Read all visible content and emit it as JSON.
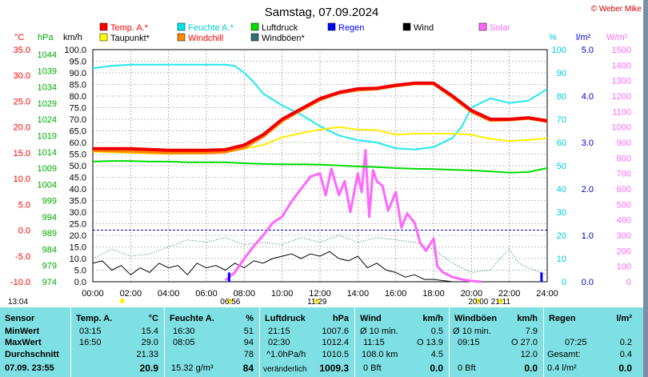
{
  "title": "Samstag, 07.09.2024",
  "copyright": "© Weber Mike",
  "legend": [
    {
      "label": "Temp. A.*",
      "color": "#ff0000"
    },
    {
      "label": "Feuchte A.*",
      "color": "#00e5ee"
    },
    {
      "label": "Luftdruck",
      "color": "#00dd00"
    },
    {
      "label": "Regen",
      "color": "#0000ff"
    },
    {
      "label": "Wind",
      "color": "#000000"
    },
    {
      "label": "Solar",
      "color": "#ff66ff"
    },
    {
      "label": "Taupunkt*",
      "color": "#ffff00"
    },
    {
      "label": "Windchill",
      "color": "#ff8800"
    },
    {
      "label": "Windböen*",
      "color": "#2f6f6f"
    }
  ],
  "axis_units": {
    "temp": "°C",
    "hpa": "hPa",
    "kmh": "km/h",
    "pct": "%",
    "rain": "l/m²",
    "solar": "W/m²"
  },
  "axis_ticks": {
    "temp": [
      "35.0",
      "30.0",
      "25.0",
      "20.0",
      "15.0",
      "10.0",
      "5.0",
      "0.0",
      "-5.0",
      "-10.0"
    ],
    "hpa": [
      "1044",
      "1039",
      "1034",
      "1029",
      "1024",
      "1019",
      "1014",
      "1009",
      "1004",
      "999",
      "994",
      "989",
      "984",
      "979",
      "974"
    ],
    "kmh": [
      "100.0",
      "95.0",
      "90.0",
      "85.0",
      "80.0",
      "75.0",
      "70.0",
      "65.0",
      "60.0",
      "55.0",
      "50.0",
      "45.0",
      "40.0",
      "35.0",
      "30.0",
      "25.0",
      "20.0",
      "15.0",
      "10.0",
      "5.0",
      "0.0"
    ],
    "pct": [
      "100",
      "90",
      "80",
      "70",
      "60",
      "50",
      "40",
      "30",
      "20",
      "10",
      "0"
    ],
    "rain": [
      "5.0",
      "4.0",
      "3.0",
      "2.0",
      "1.0",
      "0.0"
    ],
    "solar": [
      "1500",
      "1400",
      "1300",
      "1200",
      "1100",
      "1000",
      "900",
      "800",
      "700",
      "600",
      "500",
      "400",
      "300",
      "200",
      "100",
      "0"
    ],
    "x": [
      "00:00",
      "02:00",
      "04:00",
      "06:00",
      "08:00",
      "10:00",
      "12:00",
      "14:00",
      "16:00",
      "18:00",
      "20:00",
      "22:00",
      "24:00"
    ]
  },
  "events": [
    {
      "label": "13:04",
      "hour": 0.2
    },
    {
      "label": "06:56",
      "hour": 6.9
    },
    {
      "label": "11:29",
      "hour": 11.5
    },
    {
      "label": "20:00",
      "hour": 20.0
    },
    {
      "label": "21:11",
      "hour": 21.2
    }
  ],
  "chart_data": {
    "type": "line",
    "x_unit": "hour",
    "x_range": [
      0,
      24
    ],
    "series": [
      {
        "name": "Temp. A.*",
        "axis": "temp",
        "x": [
          0,
          2,
          4,
          6,
          7,
          8,
          9,
          10,
          11,
          12,
          13,
          14,
          15,
          16,
          17,
          18,
          19,
          20,
          21,
          22,
          23,
          24
        ],
        "values": [
          15.8,
          15.8,
          15.5,
          15.5,
          15.6,
          16.5,
          18.5,
          21.5,
          23.5,
          25.5,
          26.7,
          27.4,
          27.5,
          28.1,
          28.5,
          28.5,
          26,
          23.2,
          21.5,
          21.5,
          21.8,
          21.2
        ]
      },
      {
        "name": "Taupunkt*",
        "axis": "temp",
        "x": [
          0,
          2,
          4,
          6,
          7,
          8,
          9,
          10,
          11,
          12,
          13,
          14,
          15,
          16,
          17,
          18,
          19,
          20,
          21,
          22,
          23,
          24
        ],
        "values": [
          15.2,
          15.0,
          14.8,
          15.0,
          15.3,
          15.8,
          16.5,
          18,
          18.8,
          19.5,
          20,
          19.5,
          19.4,
          18.5,
          18.7,
          18.7,
          18.7,
          18.5,
          17.7,
          17.3,
          17.5,
          17.8
        ]
      },
      {
        "name": "Windchill",
        "axis": "temp",
        "x": [
          0,
          2,
          4,
          6,
          7,
          8,
          9,
          10,
          11,
          12,
          13,
          14,
          15,
          16,
          17,
          18,
          19,
          20,
          21,
          22,
          23,
          24
        ],
        "values": [
          15.5,
          15.3,
          15.0,
          15.0,
          15.2,
          16.0,
          18.2,
          21.2,
          23.3,
          25.3,
          26.6,
          27.2,
          27.4,
          28.0,
          28.4,
          28.4,
          25.8,
          23.0,
          21.3,
          21.4,
          21.7,
          21.1
        ]
      },
      {
        "name": "Feuchte A.*",
        "axis": "pct",
        "x": [
          0,
          1,
          2,
          4,
          6,
          7,
          7.5,
          8,
          8.5,
          9,
          10,
          11,
          12,
          13,
          14,
          15,
          16,
          17,
          18,
          19,
          19.5,
          20,
          21,
          22,
          23,
          24
        ],
        "values": [
          92,
          93,
          93.5,
          93.5,
          93.5,
          93.5,
          93,
          90,
          86,
          81,
          76,
          72,
          67,
          63,
          61,
          60,
          57.5,
          57,
          58,
          62,
          67,
          75,
          79,
          77,
          78,
          83
        ]
      },
      {
        "name": "Luftdruck",
        "axis": "hpa",
        "x": [
          0,
          1,
          2,
          3,
          4,
          5,
          6,
          7,
          8,
          9,
          10,
          11,
          12,
          13,
          14,
          15,
          16,
          17,
          18,
          19,
          20,
          21,
          22,
          23,
          24
        ],
        "values": [
          1011.0,
          1011.2,
          1011.2,
          1011.0,
          1011.0,
          1010.8,
          1010.8,
          1010.8,
          1010.5,
          1010.3,
          1010.2,
          1010.2,
          1010.1,
          1009.8,
          1009.5,
          1009.3,
          1009.0,
          1008.8,
          1008.7,
          1008.5,
          1008.3,
          1008.0,
          1007.6,
          1007.8,
          1009.0
        ]
      },
      {
        "name": "Solar",
        "axis": "solar",
        "x": [
          7,
          7.5,
          8,
          8.5,
          9,
          9.5,
          10,
          10.5,
          11,
          11.5,
          12,
          12.3,
          12.6,
          13,
          13.3,
          13.6,
          14,
          14.2,
          14.4,
          14.6,
          14.8,
          15,
          15.3,
          15.6,
          16,
          16.3,
          16.6,
          17,
          17.3,
          17.6,
          18,
          18.2,
          18.5,
          19,
          19.5,
          20,
          20.5
        ],
        "values": [
          10,
          60,
          150,
          230,
          300,
          380,
          420,
          520,
          600,
          680,
          700,
          560,
          730,
          560,
          650,
          450,
          700,
          580,
          850,
          420,
          720,
          650,
          620,
          460,
          580,
          350,
          440,
          380,
          250,
          200,
          280,
          100,
          60,
          30,
          15,
          5,
          0
        ]
      },
      {
        "name": "Wind",
        "axis": "kmh",
        "x": [
          0,
          0.5,
          1,
          1.5,
          2,
          2.5,
          3,
          3.5,
          4,
          4.5,
          5,
          5.5,
          6,
          6.5,
          7,
          7.5,
          8,
          8.5,
          9,
          9.5,
          10,
          10.5,
          11,
          11.5,
          12,
          12.5,
          13,
          13.5,
          14,
          14.5,
          15,
          15.5,
          16,
          16.5,
          17,
          17.5,
          18,
          19,
          20,
          21,
          22,
          23,
          24
        ],
        "values": [
          8,
          9,
          5,
          7,
          3,
          6,
          4,
          8,
          6,
          7,
          3,
          8,
          6,
          7,
          5,
          8,
          6,
          9,
          8,
          10,
          11,
          12,
          10,
          12,
          11,
          13,
          10,
          9,
          11,
          6,
          8,
          5,
          4,
          2,
          3,
          1,
          1,
          0,
          0,
          0,
          0,
          0,
          0
        ]
      },
      {
        "name": "Windböen*",
        "axis": "kmh",
        "x": [
          0,
          1,
          2,
          3,
          4,
          5,
          6,
          7,
          8,
          9,
          10,
          11,
          12,
          13,
          14,
          15,
          16,
          17,
          18,
          19,
          20,
          21,
          21.5,
          22,
          22.5,
          23,
          24
        ],
        "values": [
          10,
          14,
          11,
          12,
          15,
          18,
          17,
          19,
          16,
          17,
          16,
          19,
          17,
          20,
          17,
          19,
          18,
          17,
          14,
          8,
          4,
          5,
          10,
          14,
          8,
          6,
          3
        ]
      },
      {
        "name": "Regen",
        "axis": "rain",
        "x": [
          7.2,
          23.7
        ],
        "values": [
          0.2,
          0.2
        ]
      }
    ]
  },
  "stats": {
    "sensor": {
      "header": "Sensor",
      "min": "MinWert",
      "max": "MaxWert",
      "avg": "Durchschnitt",
      "current": "07.09. 23:55"
    },
    "temp": {
      "header": "Temp. A.",
      "unit": "°C",
      "min_time": "03:15",
      "min_val": "15.4",
      "max_time": "16:50",
      "max_val": "29.0",
      "avg": "21.33",
      "current": "20.9"
    },
    "humidity": {
      "header": "Feuchte A.",
      "unit": "%",
      "min_time": "16:30",
      "min_val": "51",
      "max_time": "08:05",
      "max_val": "94",
      "avg": "78",
      "current_label": "15.32 g/m³",
      "current": "84"
    },
    "pressure": {
      "header": "Luftdruck",
      "unit": "hPa",
      "min_time": "21:15",
      "min_val": "1007.6",
      "max_time": "02:30",
      "max_val": "1012.4",
      "avg_label": "^1.0hPa/h",
      "avg": "1010.5",
      "current_label": "veränderlich",
      "current": "1009.3"
    },
    "wind": {
      "header": "Wind",
      "unit": "km/h",
      "min_time": "Ø 10 min.",
      "min_val": "0.5",
      "max_time": "11:15",
      "max_val": "O 13.9",
      "avg_label": "108.0 km",
      "avg": "4.5",
      "current_label": "0 Bft",
      "current": "0.0"
    },
    "gusts": {
      "header": "Windböen",
      "unit": "km/h",
      "min_time": "Ø 10 min.",
      "min_val": "7.9",
      "max_time": "09:15",
      "max_val": "O 27.0",
      "avg": "12.0",
      "current_label": "0 Bft",
      "current": "0.0"
    },
    "rain": {
      "header": "Regen",
      "unit": "l/m²",
      "max_time": "07:25",
      "max_val": "0.2",
      "avg_label": "Gesamt:",
      "avg": "0.4",
      "current_label": "0.4 l/m²",
      "current": "0.0"
    }
  }
}
